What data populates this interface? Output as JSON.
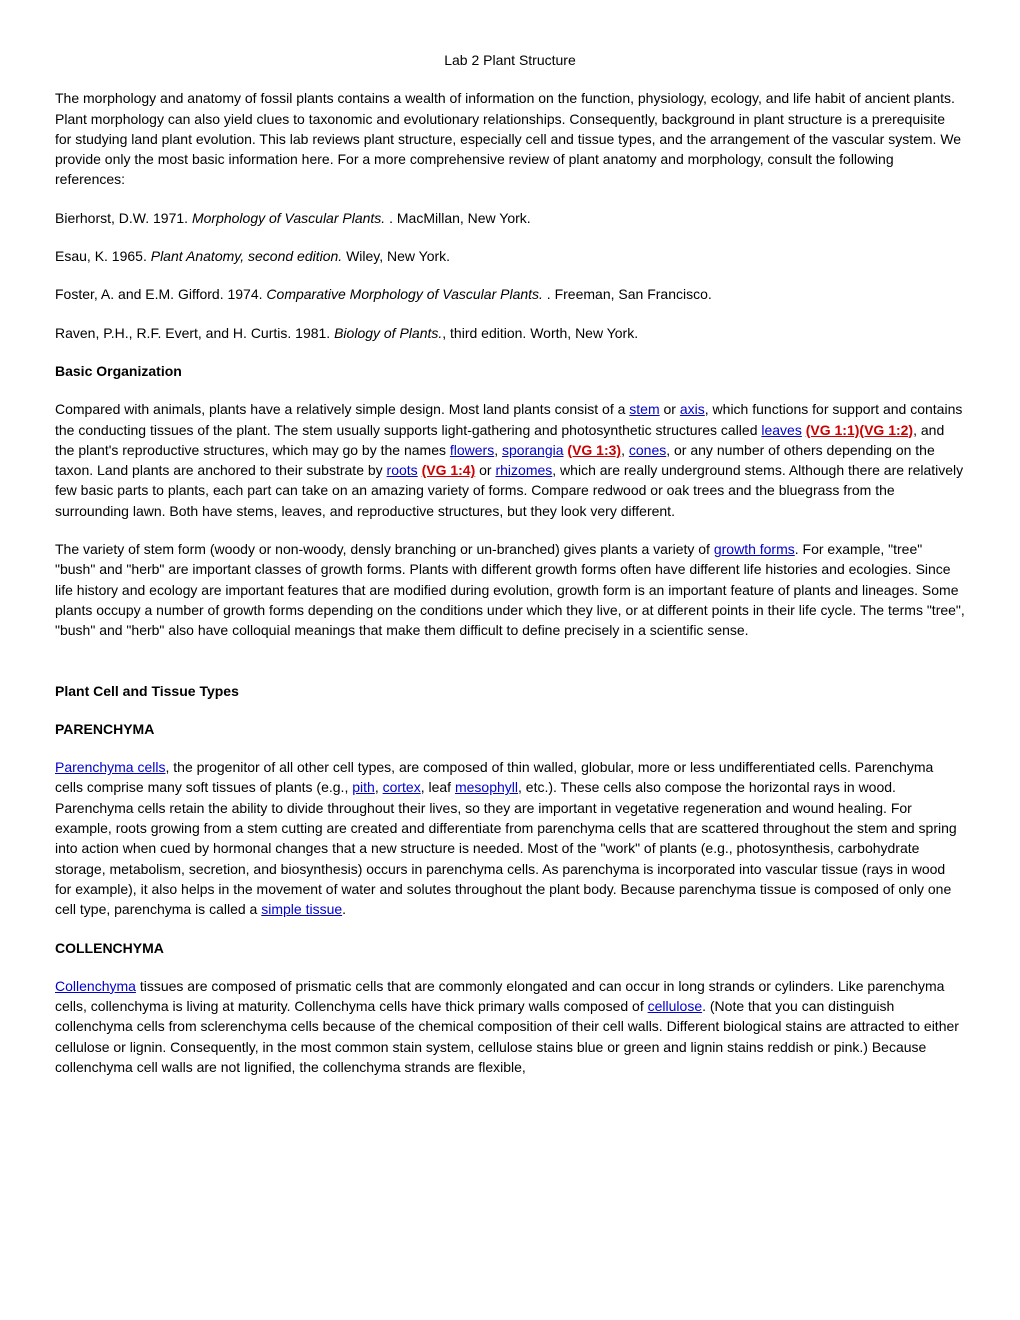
{
  "title": "Lab 2 Plant Structure",
  "intro": {
    "p1_a": "The morphology and anatomy of fossil plants contains a wealth of information on the function, physiology, ecology, and life habit of ancient plants. Plant morphology can also yield clues to taxonomic and evolutionary relationships. Consequently, background in plant structure is a prerequisite for studying land plant evolution. This lab reviews plant structure, especially cell and tissue types, and the arrangement of the vascular system. We provide only the most basic information here. For a more comprehensive review of plant anatomy and morphology, consult the following references:"
  },
  "refs": {
    "r1_a": "Bierhorst, D.W. 1971. ",
    "r1_i": "Morphology of Vascular Plants.",
    "r1_b": " . MacMillan, New York.",
    "r2_a": "Esau, K. 1965. ",
    "r2_i": "Plant Anatomy, second edition.",
    "r2_b": " Wiley, New York.",
    "r3_a": "Foster, A. and E.M. Gifford. 1974. ",
    "r3_i": "Comparative Morphology of Vascular Plants.",
    "r3_b": " . Freeman, San Francisco.",
    "r4_a": "Raven, P.H., R.F. Evert, and H. Curtis. 1981. ",
    "r4_i": "Biology of Plants.",
    "r4_b": ", third edition. Worth, New York."
  },
  "basic": {
    "head": "Basic Organization",
    "p1_a": "Compared with animals, plants have a relatively simple design. Most land plants consist of a ",
    "p1_stem": "stem",
    "p1_b": " or ",
    "p1_axis": "axis",
    "p1_c": ", which functions for support and contains the conducting tissues of the plant. The stem usually supports light-gathering and photosynthetic structures called ",
    "p1_leaves": "leaves",
    "p1_sp1": " ",
    "p1_vg11": "(VG 1:1)",
    "p1_vg12": "(VG 1:2)",
    "p1_d": ", and the plant's reproductive structures, which may go by the names ",
    "p1_flowers": "flowers",
    "p1_e": ", ",
    "p1_sporangia": "sporangia",
    "p1_sp2": " ",
    "p1_vg13": "(VG 1:3)",
    "p1_f": ", ",
    "p1_cones": "cones",
    "p1_g": ", or any number of others depending on the taxon. Land plants are anchored to their substrate by ",
    "p1_roots": "roots",
    "p1_sp3": " ",
    "p1_vg14": "(VG 1:4)",
    "p1_h": " or ",
    "p1_rhizomes": "rhizomes",
    "p1_i": ", which are really underground stems. Although there are relatively few basic parts to plants, each part can take on an amazing variety of forms. Compare redwood or oak trees and the bluegrass from the surrounding lawn. Both have stems, leaves, and reproductive structures, but they look very different.",
    "p2_a": "The variety of stem form (woody or non-woody, densly branching or un-branched) gives plants a variety of ",
    "p2_growth": "growth forms",
    "p2_b": ". For example, \"tree\" \"bush\" and \"herb\" are important classes of growth forms. Plants with different growth forms often have different life histories and ecologies. Since life history and ecology are important features that are modified during evolution, growth form is an important feature of plants and lineages. Some plants occupy a number of growth forms depending on the conditions under which they live, or at different points in their life cycle. The terms \"tree\", \"bush\" and \"herb\" also have colloquial meanings that make them difficult to define precisely in a scientific sense."
  },
  "tissues": {
    "head": "Plant Cell and Tissue Types",
    "parenchyma_head": "PARENCHYMA",
    "par_link1": "Parenchyma cells",
    "par_a": ", the progenitor of all other cell types, are composed of thin walled, globular, more or less undifferentiated cells. Parenchyma cells comprise many soft tissues of plants (e.g., ",
    "par_pith": "pith",
    "par_b": ", ",
    "par_cortex": "cortex",
    "par_c": ", leaf ",
    "par_mesophyll": "mesophyll",
    "par_d": ", etc.). These cells also compose the horizontal rays in wood. Parenchyma cells retain the ability to divide throughout their lives, so they are important in vegetative regeneration and wound healing. For example, roots growing from a stem cutting are created and differentiate from parenchyma cells that are scattered throughout the stem and spring into action when cued by hormonal changes that a new structure is needed. Most of the \"work\" of plants (e.g., photosynthesis, carbohydrate storage, metabolism, secretion, and biosynthesis) occurs in parenchyma cells. As parenchyma is incorporated into vascular tissue (rays in wood for example), it also helps in the movement of water and solutes throughout the plant body. Because parenchyma tissue is composed of only one cell type, parenchyma is called a ",
    "par_simple": "simple tissue",
    "par_e": ".",
    "collenchyma_head": "COLLENCHYMA",
    "col_link1": "Collenchyma",
    "col_a": " tissues are composed of prismatic cells that are commonly elongated and can occur in long strands or cylinders. Like parenchyma cells, collenchyma is living at maturity. Collenchyma cells have thick primary walls composed of ",
    "col_cellulose": "cellulose",
    "col_b": ". (Note that you can distinguish collenchyma cells from sclerenchyma cells because of the chemical composition of their cell walls. Different biological stains are attracted to either cellulose or lignin. Consequently, in the most common stain system, cellulose stains blue or green and lignin stains reddish or pink.) Because collenchyma cell walls are not lignified, the collenchyma strands are flexible,"
  }
}
